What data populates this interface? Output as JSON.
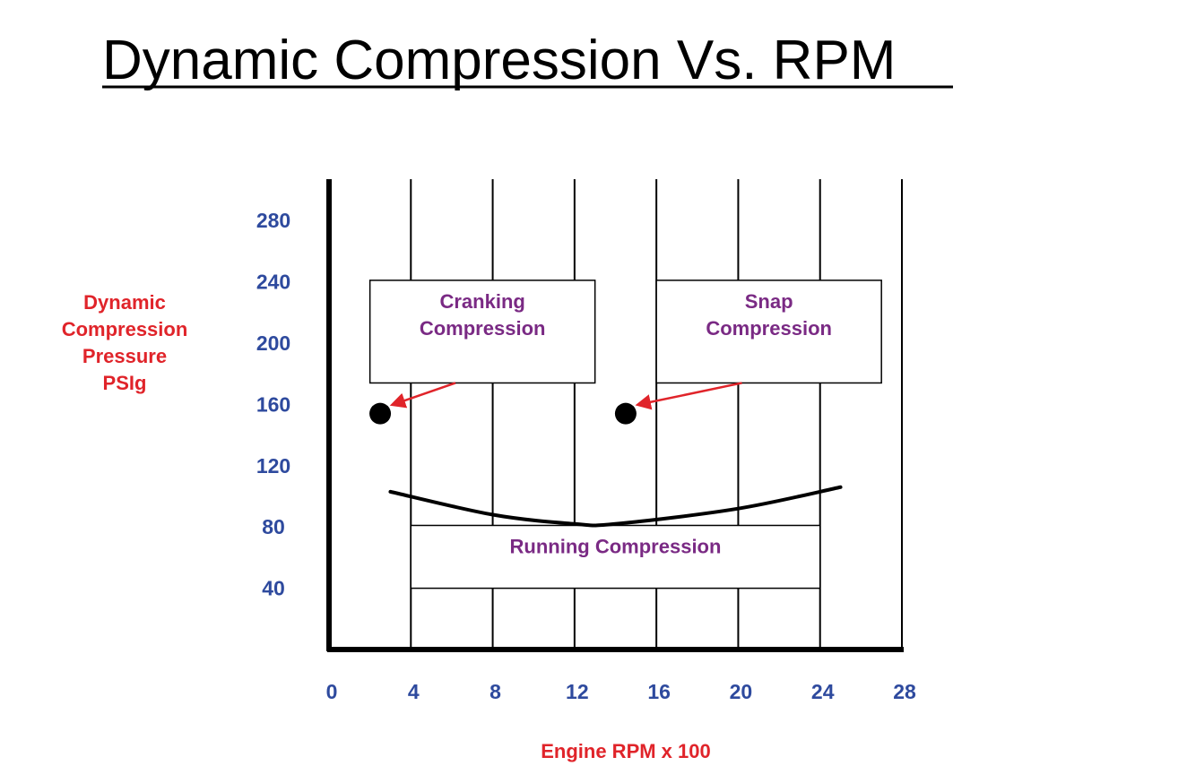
{
  "title": "Dynamic Compression Vs. RPM",
  "colors": {
    "tick": "#2e4a9e",
    "axis_label": "#e0242a",
    "annotation": "#7a2a84",
    "arrow": "#e0242a",
    "ink": "#000000"
  },
  "chart_data": {
    "type": "line",
    "title": "Dynamic Compression Vs. RPM",
    "xlabel": "Engine RPM x 100",
    "ylabel": [
      "Dynamic",
      "Compression",
      "Pressure",
      "PSIg"
    ],
    "x_ticks": [
      0,
      4,
      8,
      12,
      16,
      20,
      24,
      28
    ],
    "y_ticks": [
      40,
      80,
      120,
      160,
      200,
      240,
      280
    ],
    "xlim": [
      0,
      28
    ],
    "ylim": [
      0,
      300
    ],
    "grid": "vertical",
    "series": [
      {
        "points": [
          {
            "x": 3,
            "y": 103
          },
          {
            "x": 8,
            "y": 88
          },
          {
            "x": 12,
            "y": 82
          },
          {
            "x": 14,
            "y": 82
          },
          {
            "x": 20,
            "y": 92
          },
          {
            "x": 25,
            "y": 106
          }
        ]
      }
    ],
    "markers": [
      {
        "x": 2.5,
        "y": 154
      },
      {
        "x": 14.5,
        "y": 154
      }
    ],
    "annotations": [
      {
        "lines": [
          "Cranking",
          "Compression"
        ],
        "x0": 2,
        "x1": 13,
        "y0": 174,
        "y1": 241,
        "arrow_to": 0
      },
      {
        "lines": [
          "Snap",
          "Compression"
        ],
        "x0": 16,
        "x1": 27,
        "y0": 174,
        "y1": 241,
        "arrow_to": 1
      },
      {
        "lines": [
          "Running Compression"
        ],
        "x0": 4,
        "x1": 24,
        "y0": 40,
        "y1": 81
      }
    ]
  }
}
